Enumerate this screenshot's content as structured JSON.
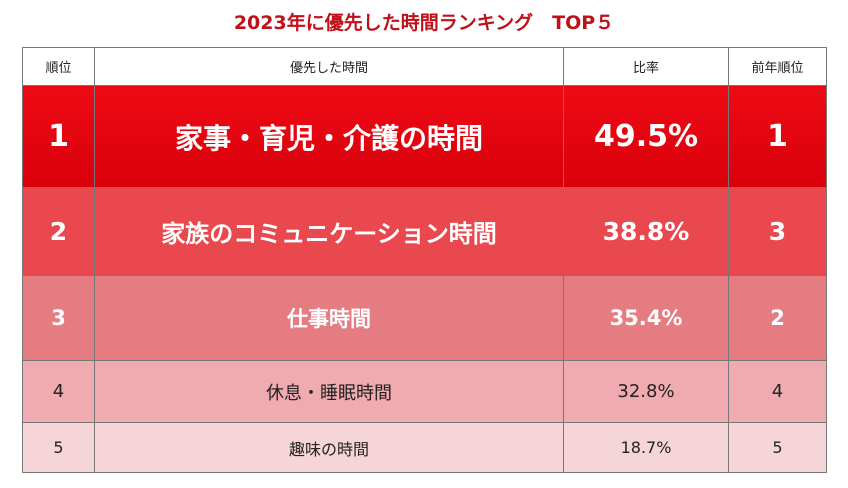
{
  "title": "2023年に優先した時間ランキング　TOP５",
  "table": {
    "header": [
      "順位",
      "優先した時間",
      "比率",
      "前年順位"
    ],
    "rows": [
      [
        "1",
        "家事・育児・介護の時間",
        "49.5%",
        "1"
      ],
      [
        "2",
        "家族のコミュニケーション時間",
        "38.8%",
        "3"
      ],
      [
        "3",
        "仕事時間",
        "35.4%",
        "2"
      ],
      [
        "4",
        "休息・睡眠時間",
        "32.8%",
        "4"
      ],
      [
        "5",
        "趣味の時間",
        "18.7%",
        "5"
      ]
    ]
  }
}
